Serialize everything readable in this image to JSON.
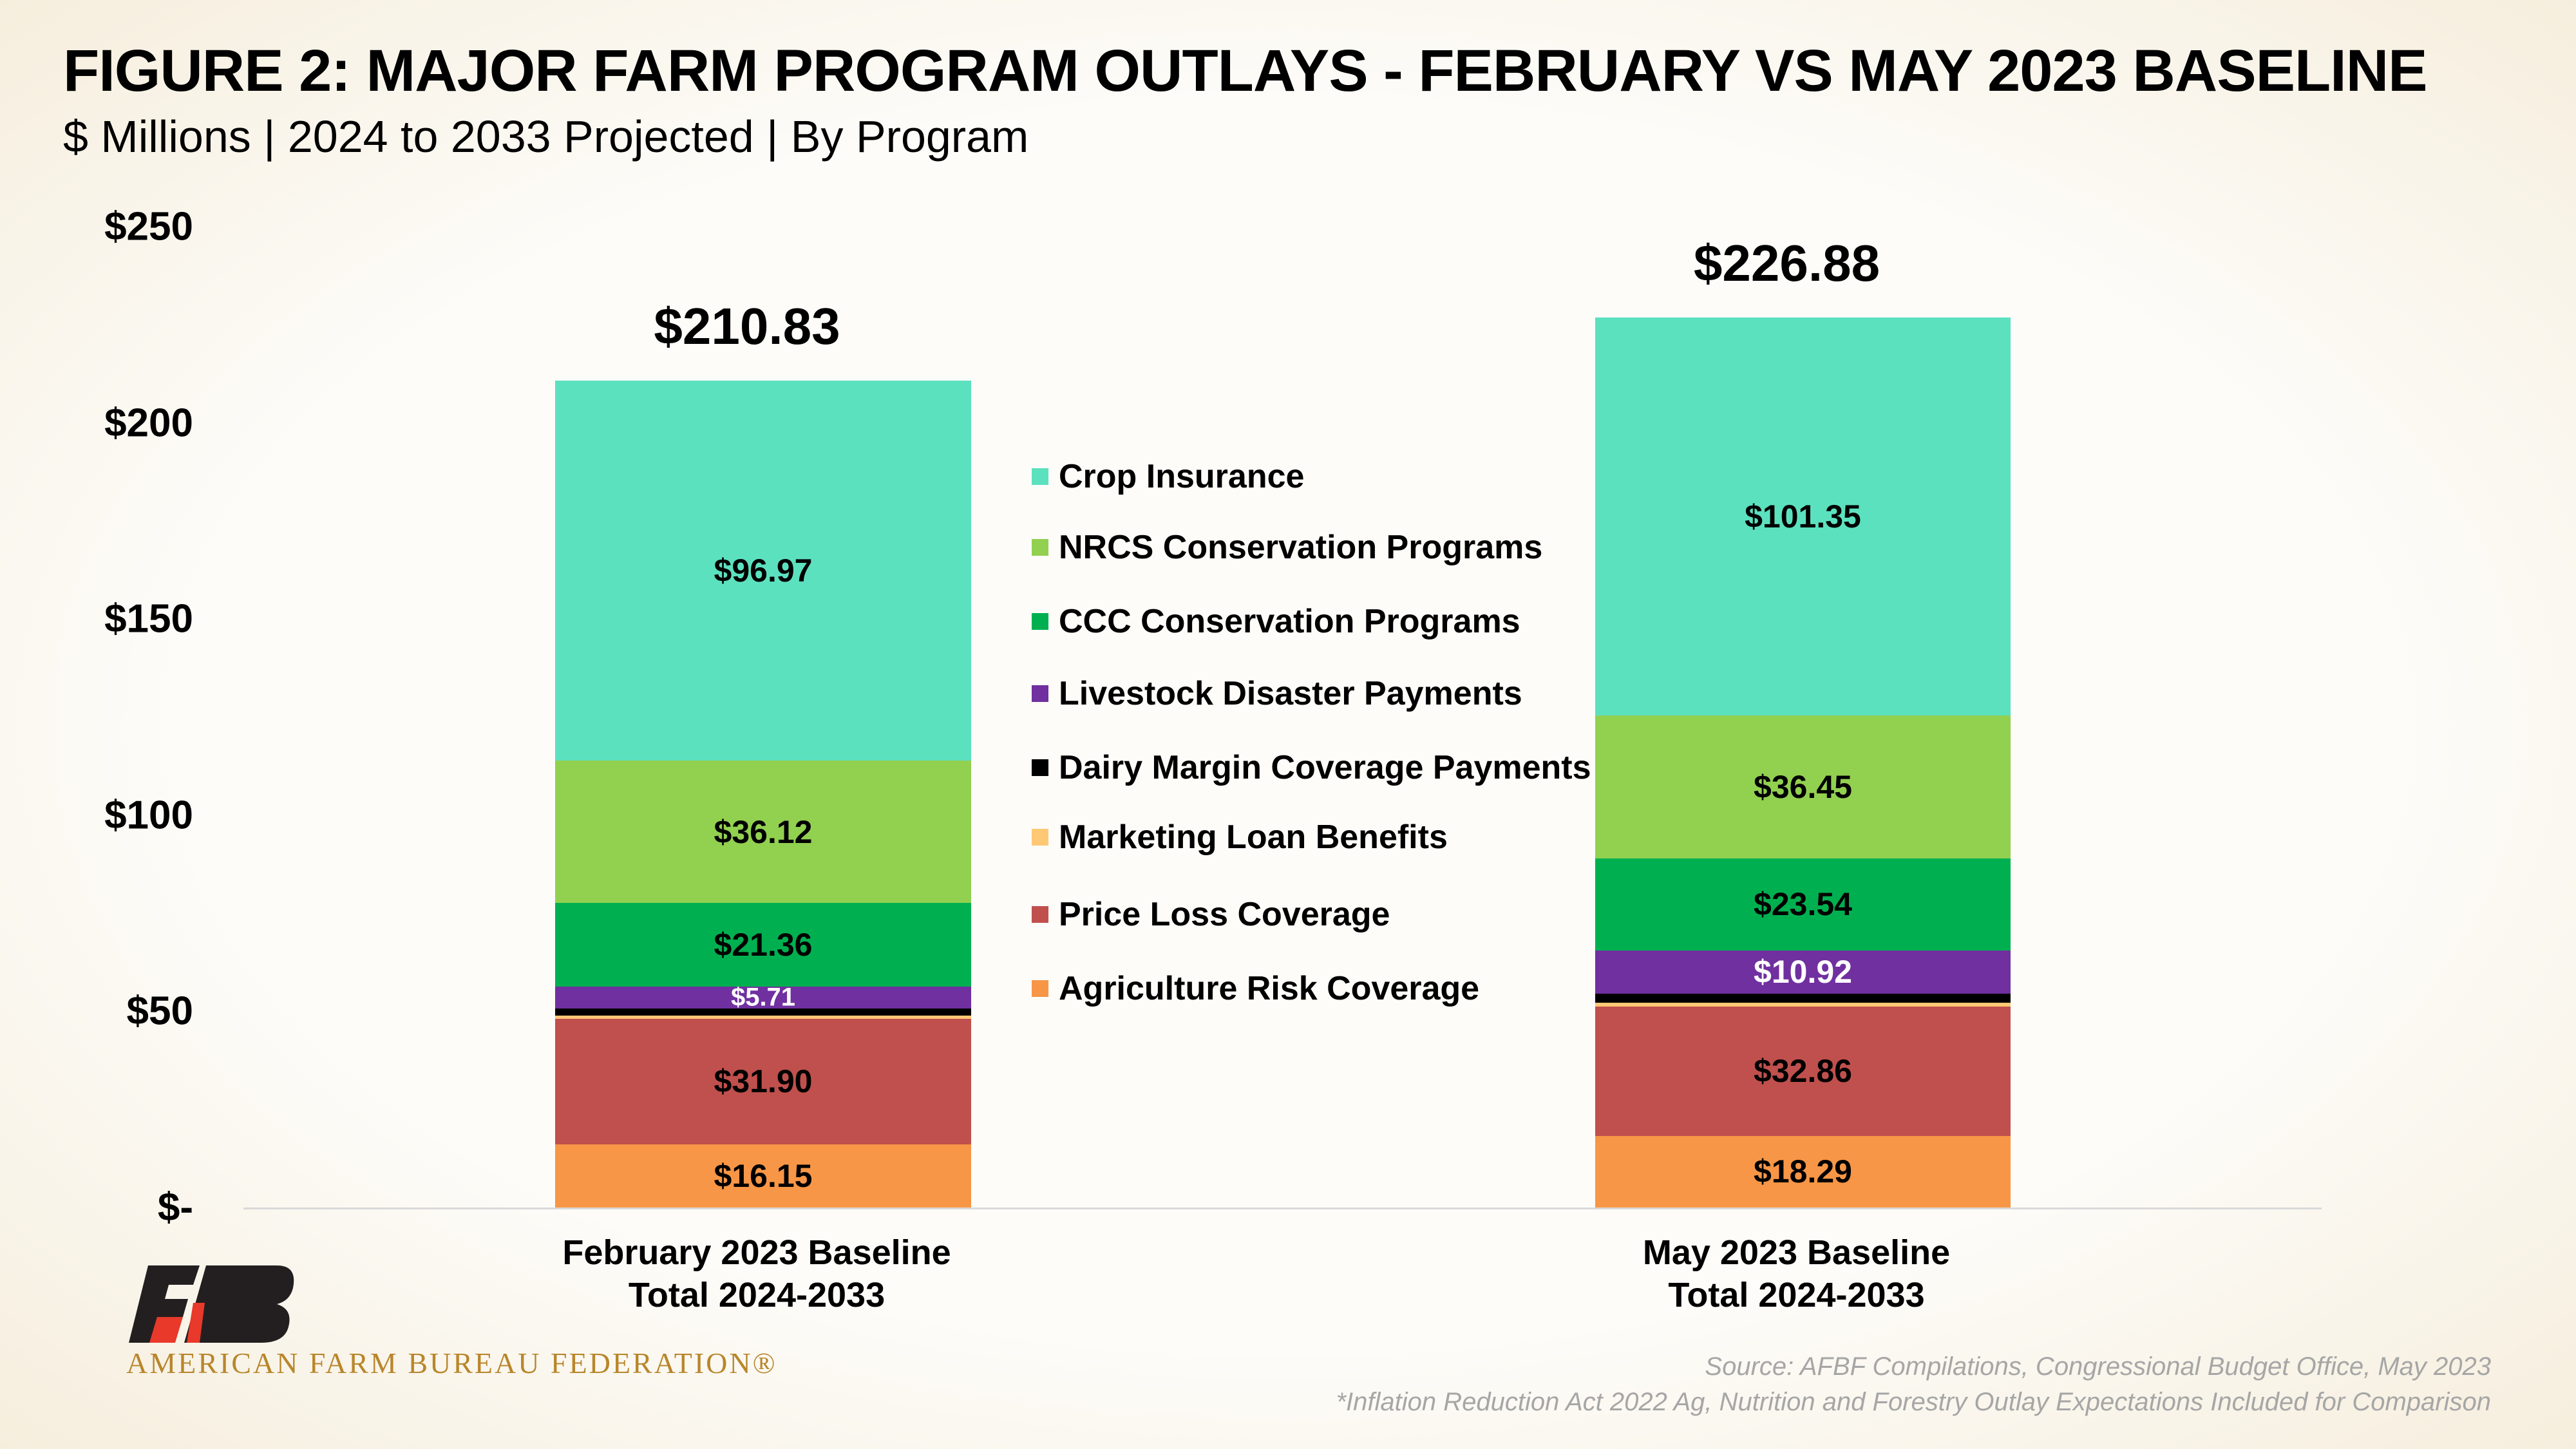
{
  "header": {
    "title": "FIGURE 2: MAJOR FARM PROGRAM OUTLAYS - FEBRUARY VS MAY 2023 BASELINE",
    "subtitle": "$ Millions | 2024 to 2033 Projected | By Program"
  },
  "chart_data": {
    "type": "bar",
    "stacked": true,
    "title": "FIGURE 2: MAJOR FARM PROGRAM OUTLAYS - FEBRUARY VS MAY 2023 BASELINE",
    "subtitle": "$ Millions | 2024 to 2033 Projected | By Program",
    "categories": [
      [
        "February 2023 Baseline",
        "Total 2024-2033"
      ],
      [
        "May 2023 Baseline",
        "Total 2024-2033"
      ]
    ],
    "totals": [
      210.83,
      226.88
    ],
    "total_labels": [
      "$210.83",
      "$226.88"
    ],
    "ylim": [
      0,
      250
    ],
    "yticks": [
      0,
      50,
      100,
      150,
      200,
      250
    ],
    "ytick_labels": [
      "$-",
      "$50",
      "$100",
      "$150",
      "$200",
      "$250"
    ],
    "grid": false,
    "legend_position": "center",
    "series": [
      {
        "name": "Agriculture Risk Coverage",
        "color": "#f79646",
        "values": [
          16.15,
          18.29
        ],
        "labels": [
          "$16.15",
          "$18.29"
        ],
        "label_color": "#000000"
      },
      {
        "name": "Price Loss Coverage",
        "color": "#c0504d",
        "values": [
          31.9,
          32.86
        ],
        "labels": [
          "$31.90",
          "$32.86"
        ],
        "label_color": "#000000"
      },
      {
        "name": "Marketing Loan Benefits",
        "color": "#ffc875",
        "values": [
          0.8,
          1.0
        ],
        "labels": [
          "",
          ""
        ],
        "label_color": "#000000"
      },
      {
        "name": "Dairy Margin Coverage Payments",
        "color": "#000000",
        "values": [
          1.8,
          2.4
        ],
        "labels": [
          "",
          ""
        ],
        "label_color": "#ffffff"
      },
      {
        "name": "Livestock Disaster Payments",
        "color": "#7030a0",
        "values": [
          5.71,
          10.92
        ],
        "labels": [
          "$5.71",
          "$10.92"
        ],
        "label_color": "#ffffff"
      },
      {
        "name": "CCC Conservation Programs",
        "color": "#00b050",
        "values": [
          21.36,
          23.54
        ],
        "labels": [
          "$21.36",
          "$23.54"
        ],
        "label_color": "#000000"
      },
      {
        "name": "NRCS Conservation Programs",
        "color": "#92d050",
        "values": [
          36.12,
          36.45
        ],
        "labels": [
          "$36.12",
          "$36.45"
        ],
        "label_color": "#000000"
      },
      {
        "name": "Crop Insurance",
        "color": "#5ce1bf",
        "values": [
          96.97,
          101.35
        ],
        "labels": [
          "$96.97",
          "$101.35"
        ],
        "label_color": "#000000"
      }
    ]
  },
  "legend": [
    "Crop Insurance",
    "NRCS Conservation Programs",
    "CCC Conservation Programs",
    "Livestock Disaster Payments",
    "Dairy Margin Coverage Payments",
    "Marketing Loan Benefits",
    "Price Loss Coverage",
    "Agriculture Risk Coverage"
  ],
  "footer": {
    "logo_text": "AMERICAN FARM BUREAU FEDERATION®",
    "source": "Source: AFBF Compilations, Congressional Budget Office, May 2023",
    "note": "*Inflation Reduction Act 2022 Ag, Nutrition and Forestry Outlay Expectations Included for Comparison"
  }
}
